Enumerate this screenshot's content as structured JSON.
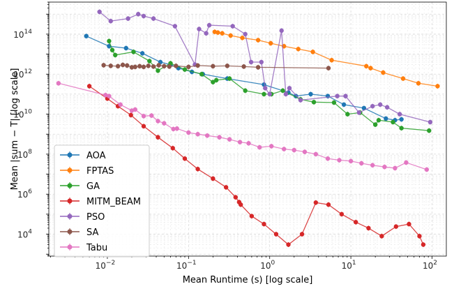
{
  "chart_data": {
    "type": "line",
    "xlabel": "Mean Runtime (s) [log scale]",
    "ylabel": "Mean |sum − T| [log scale]",
    "x_scale": "log",
    "y_scale": "log",
    "xlim": [
      0.0019,
      150
    ],
    "ylim": [
      800,
      4000000000000000.0
    ],
    "grid": true,
    "legend_position": "lower-left",
    "x_ticks": [
      {
        "value": 0.01,
        "base": "10",
        "exp": "−2"
      },
      {
        "value": 0.1,
        "base": "10",
        "exp": "−1"
      },
      {
        "value": 1,
        "base": "10",
        "exp": "0"
      },
      {
        "value": 10,
        "base": "10",
        "exp": "1"
      },
      {
        "value": 100,
        "base": "10",
        "exp": "2"
      }
    ],
    "y_ticks": [
      {
        "value": 10000,
        "base": "10",
        "exp": "4"
      },
      {
        "value": 1000000,
        "base": "10",
        "exp": "6"
      },
      {
        "value": 100000000,
        "base": "10",
        "exp": "8"
      },
      {
        "value": 10000000000,
        "base": "10",
        "exp": "10"
      },
      {
        "value": 1000000000000,
        "base": "10",
        "exp": "12"
      },
      {
        "value": 100000000000000,
        "base": "10",
        "exp": "14"
      }
    ],
    "series": [
      {
        "name": "AOA",
        "color": "#1f77b4",
        "x": [
          0.0055,
          0.0105,
          0.017,
          0.027,
          0.045,
          0.06,
          0.075,
          0.11,
          0.15,
          0.3,
          0.85,
          1.7,
          2.1,
          3.2,
          5.2,
          8.2,
          14.5,
          27,
          35,
          42
        ],
        "y": [
          80000000000000.0,
          25000000000000.0,
          20000000000000.0,
          11000000000000.0,
          4000000000000.0,
          3000000000000.0,
          2000000000000.0,
          1300000000000.0,
          1000000000000.0,
          600000000000.0,
          300000000000.0,
          120000000000.0,
          80000000000.0,
          100000000000.0,
          80000000000.0,
          30000000000.0,
          20000000000.0,
          6000000000.0,
          5000000000.0,
          5500000000.0
        ]
      },
      {
        "name": "FPTAS",
        "color": "#ff7f0e",
        "x": [
          0.21,
          0.23,
          0.26,
          0.33,
          0.46,
          0.72,
          1.03,
          1.5,
          2.25,
          3.4,
          5.8,
          15.5,
          17.5,
          25,
          44,
          68,
          117
        ],
        "y": [
          130000000000000.0,
          120000000000000.0,
          110000000000000.0,
          85000000000000.0,
          65000000000000.0,
          50000000000000.0,
          35000000000000.0,
          25000000000000.0,
          18000000000000.0,
          13000000000000.0,
          5000000000000.0,
          2500000000000.0,
          2000000000000.0,
          1200000000000.0,
          600000000000.0,
          350000000000.0,
          250000000000.0
        ]
      },
      {
        "name": "GA",
        "color": "#2ca02c",
        "x": [
          0.0105,
          0.0115,
          0.0125,
          0.021,
          0.033,
          0.042,
          0.06,
          0.09,
          0.145,
          0.2,
          0.22,
          0.32,
          0.5,
          0.85,
          1.05,
          1.45,
          2.4,
          3.5,
          6.2,
          9.1,
          13,
          20,
          22,
          33,
          42,
          92
        ],
        "y": [
          45000000000000.0,
          16000000000000.0,
          9000000000000.0,
          13000000000000.0,
          4500000000000.0,
          1500000000000.0,
          3500000000000.0,
          1700000000000.0,
          1000000000000.0,
          400000000000.0,
          500000000000.0,
          600000000000.0,
          150000000000.0,
          100000000000.0,
          100000000000.0,
          150000000000.0,
          55000000000.0,
          40000000000.0,
          38000000000.0,
          10000000000.0,
          12000000000.0,
          3000000000.0,
          5000000000.0,
          4000000000.0,
          2000000000.0,
          1500000000.0
        ]
      },
      {
        "name": "MITM_BEAM",
        "color": "#d62728",
        "x": [
          0.006,
          0.01,
          0.0135,
          0.0195,
          0.028,
          0.042,
          0.064,
          0.09,
          0.13,
          0.2,
          0.29,
          0.38,
          0.42,
          0.44,
          0.6,
          0.85,
          1.2,
          1.7,
          2.5,
          3.7,
          5.3,
          7.7,
          11.5,
          16.5,
          24,
          36,
          52,
          70,
          78
        ],
        "y": [
          250000000000.0,
          60000000000.0,
          25000000000.0,
          9000000000.0,
          2500000000.0,
          700000000.0,
          200000000.0,
          60000000.0,
          18000000.0,
          6000000.0,
          2200000.0,
          700000.0,
          400000.0,
          300000.0,
          80000.0,
          32000.0,
          10000.0,
          3000.0,
          10000.0,
          380000.0,
          300000.0,
          100000.0,
          40000.0,
          20000.0,
          8000.0,
          24000.0,
          32000.0,
          8000.0,
          3000.0
        ]
      },
      {
        "name": "PSO",
        "color": "#9467bd",
        "x": [
          0.008,
          0.011,
          0.018,
          0.024,
          0.028,
          0.037,
          0.068,
          0.12,
          0.135,
          0.165,
          0.18,
          0.35,
          0.5,
          0.59,
          0.79,
          0.88,
          1.0,
          1.4,
          1.58,
          1.75,
          2.4,
          6.8,
          8.6,
          12.6,
          18.5,
          23,
          28,
          40,
          95
        ],
        "y": [
          1300000000000000.0,
          450000000000000.0,
          600000000000000.0,
          1000000000000000.0,
          800000000000000.0,
          600000000000000.0,
          250000000000000.0,
          3000000000000.0,
          180000000000000.0,
          110000000000000.0,
          280000000000000.0,
          250000000000000.0,
          100000000000000.0,
          4000000000000.0,
          4000000000000.0,
          200000000000.0,
          100000000000.0,
          150000000000000.0,
          100000000000.0,
          200000000000.0,
          50000000000.0,
          80000000000.0,
          80000000000.0,
          12000000000.0,
          25000000000.0,
          30000000000.0,
          22000000000.0,
          10000000000.0,
          4000000000.0
        ]
      },
      {
        "name": "SA",
        "color": "#8c564b",
        "x": [
          0.009,
          0.011,
          0.0135,
          0.0155,
          0.0175,
          0.02,
          0.022,
          0.025,
          0.028,
          0.032,
          0.037,
          0.043,
          0.05,
          0.058,
          0.07,
          0.1,
          0.13,
          0.2,
          0.3,
          0.48,
          0.72,
          5.3
        ],
        "y": [
          2800000000000.0,
          2600000000000.0,
          2500000000000.0,
          2900000000000.0,
          2700000000000.0,
          2200000000000.0,
          2300000000000.0,
          2500000000000.0,
          2300000000000.0,
          2600000000000.0,
          2400000000000.0,
          2800000000000.0,
          2500000000000.0,
          2400000000000.0,
          2600000000000.0,
          2300000000000.0,
          2700000000000.0,
          2500000000000.0,
          2600000000000.0,
          2400000000000.0,
          2200000000000.0,
          2000000000000.0
        ]
      },
      {
        "name": "Tabu",
        "color": "#e377c2",
        "x": [
          0.0025,
          0.0095,
          0.0105,
          0.0145,
          0.02,
          0.022,
          0.028,
          0.035,
          0.042,
          0.05,
          0.065,
          0.072,
          0.1,
          0.13,
          0.17,
          0.24,
          0.32,
          0.43,
          0.55,
          0.75,
          1.05,
          1.5,
          2.0,
          2.7,
          3.7,
          5.2,
          7.2,
          10,
          13.5,
          18.5,
          26,
          35,
          48,
          86
        ],
        "y": [
          350000000000.0,
          90000000000.0,
          80000000000.0,
          30000000000.0,
          15000000000.0,
          17000000000.0,
          8000000000.0,
          8500000000.0,
          4500000000.0,
          3500000000.0,
          1800000000.0,
          1900000000.0,
          1200000000.0,
          1000000000.0,
          850000000.0,
          700000000.0,
          550000000.0,
          400000000.0,
          350000000.0,
          220000000.0,
          250000000.0,
          180000000.0,
          160000000.0,
          130000000.0,
          100000000.0,
          60000000.0,
          50000000.0,
          45000000.0,
          35000000.0,
          28000000.0,
          23000000.0,
          20000000.0,
          38000000.0,
          17000000.0
        ]
      }
    ]
  }
}
